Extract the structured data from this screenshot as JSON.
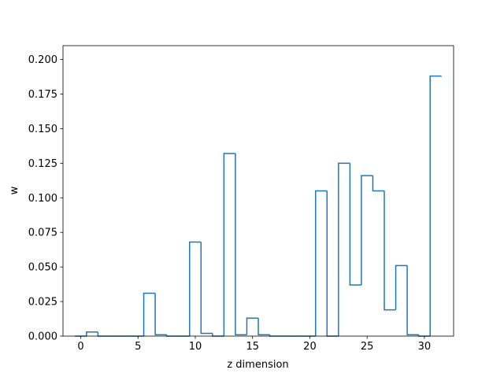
{
  "chart_data": {
    "type": "step",
    "xlabel": "z dimension",
    "ylabel": "w",
    "xlim": [
      -1.55,
      32.55
    ],
    "ylim": [
      0,
      0.21
    ],
    "x_ticks": [
      0,
      5,
      10,
      15,
      20,
      25,
      30
    ],
    "y_ticks": [
      0.0,
      0.025,
      0.05,
      0.075,
      0.1,
      0.125,
      0.15,
      0.175,
      0.2
    ],
    "y_tick_labels": [
      "0.000",
      "0.025",
      "0.050",
      "0.075",
      "0.100",
      "0.125",
      "0.150",
      "0.175",
      "0.200"
    ],
    "grid": false,
    "line_color": "#1f77b4",
    "step_edges": [
      -0.5,
      0.5,
      1.5,
      2.5,
      3.5,
      4.5,
      5.5,
      6.5,
      7.5,
      8.5,
      9.5,
      10.5,
      11.5,
      12.5,
      13.5,
      14.5,
      15.5,
      16.5,
      17.5,
      18.5,
      19.5,
      20.5,
      21.5,
      22.5,
      23.5,
      24.5,
      25.5,
      26.5,
      27.5,
      28.5,
      29.5,
      30.5,
      31.5
    ],
    "x": [
      0,
      1,
      2,
      3,
      4,
      5,
      6,
      7,
      8,
      9,
      10,
      11,
      12,
      13,
      14,
      15,
      16,
      17,
      18,
      19,
      20,
      21,
      22,
      23,
      24,
      25,
      26,
      27,
      28,
      29,
      30,
      31
    ],
    "values": [
      0.0,
      0.003,
      0.0,
      0.0,
      0.0,
      0.0,
      0.031,
      0.001,
      0.0,
      0.0,
      0.068,
      0.002,
      0.0,
      0.132,
      0.001,
      0.013,
      0.001,
      0.0,
      0.0,
      0.0,
      0.0,
      0.105,
      0.0,
      0.125,
      0.037,
      0.116,
      0.105,
      0.019,
      0.051,
      0.001,
      0.0,
      0.188
    ]
  }
}
